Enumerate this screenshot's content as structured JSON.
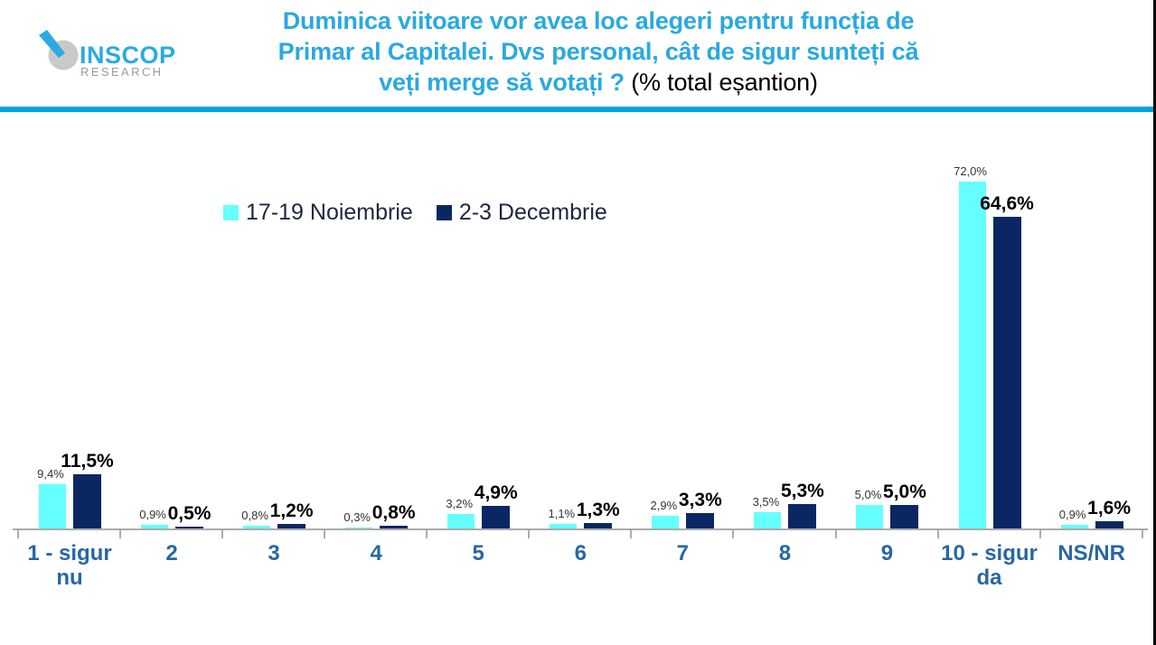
{
  "logo": {
    "name": "INSCOP",
    "subtitle": "RESEARCH",
    "accent_color": "#29ABE2",
    "gray_color": "#C9C9C9",
    "sub_color": "#9B9B9B"
  },
  "title": {
    "line1": "Duminica viitoare vor avea loc alegeri pentru funcția de",
    "line2": "Primar al Capitalei. Dvs personal, cât de sigur sunteți că",
    "line3_highlight": "veți merge să votați ?",
    "line3_plain": " (% total eșantion)",
    "highlight_color": "#29A9E1"
  },
  "divider_color": "#00A2E2",
  "chart_data": {
    "type": "bar",
    "title": "Duminica viitoare vor avea loc alegeri pentru funcția de Primar al Capitalei. Dvs personal, cât de sigur sunteți că veți merge să votați ? (% total eșantion)",
    "categories": [
      "1 - sigur nu",
      "2",
      "3",
      "4",
      "5",
      "6",
      "7",
      "8",
      "9",
      "10 - sigur da",
      "NS/NR"
    ],
    "series": [
      {
        "name": "17-19 Noiembrie",
        "color": "#66FFFF",
        "values": [
          9.4,
          0.9,
          0.8,
          0.3,
          3.2,
          1.1,
          2.9,
          3.5,
          5.0,
          72.0,
          0.9
        ],
        "labels": [
          "9,4%",
          "0,9%",
          "0,8%",
          "0,3%",
          "3,2%",
          "1,1%",
          "2,9%",
          "3,5%",
          "5,0%",
          "72,0%",
          "0,9%"
        ]
      },
      {
        "name": "2-3 Decembrie",
        "color": "#0A2763",
        "values": [
          11.5,
          0.5,
          1.2,
          0.8,
          4.9,
          1.3,
          3.3,
          5.3,
          5.0,
          64.6,
          1.6
        ],
        "labels": [
          "11,5%",
          "0,5%",
          "1,2%",
          "0,8%",
          "4,9%",
          "1,3%",
          "3,3%",
          "5,3%",
          "5,0%",
          "64,6%",
          "1,6%"
        ]
      }
    ],
    "ylim": [
      0,
      80
    ],
    "xlabel": "",
    "ylabel": "",
    "grid": false,
    "y_axis_visible": false,
    "legend_position": "top",
    "value_label_format": "romanian decimal comma + %",
    "axis_color": "#ABABAB",
    "category_label_color": "#2767A3"
  }
}
